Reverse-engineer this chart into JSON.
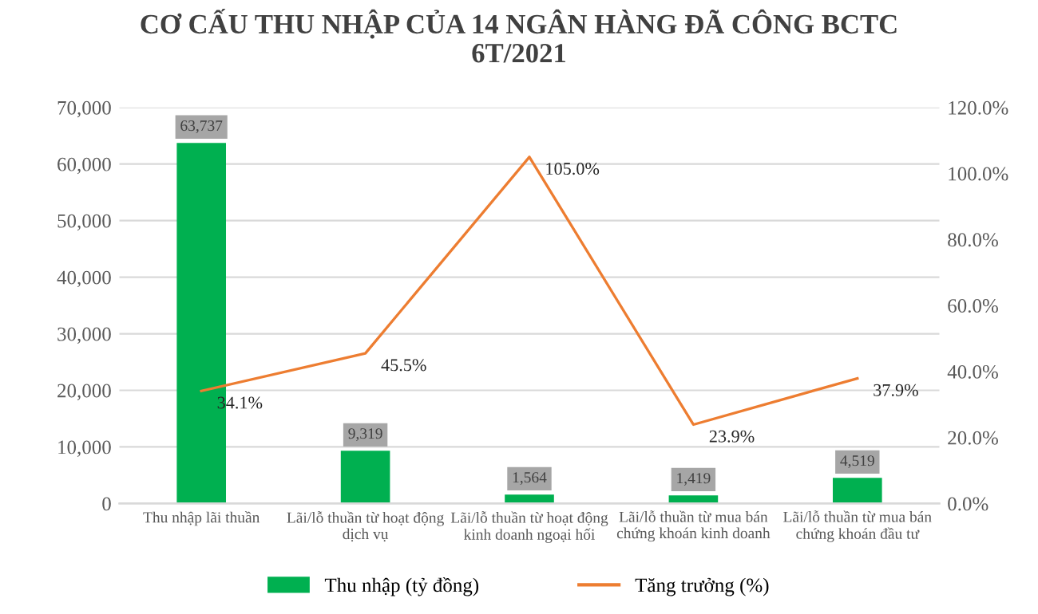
{
  "chart_data": {
    "type": "bar",
    "title": "CƠ CẤU THU NHẬP CỦA 14 NGÂN HÀNG ĐÃ CÔNG BCTC\n6T/2021",
    "categories": [
      "Thu nhập lãi thuần",
      "Lãi/lỗ thuần từ hoạt động\ndịch vụ",
      "Lãi/lỗ thuần từ hoạt động\nkinh doanh ngoại hối",
      "Lãi/lỗ thuần từ mua bán\nchứng khoán kinh doanh",
      "Lãi/lỗ thuần từ mua bán\nchứng khoán đầu tư"
    ],
    "series": [
      {
        "name": "Thu nhập (tỷ đồng)",
        "color": "#00b050",
        "values": [
          63737,
          9319,
          1564,
          1419,
          4519
        ],
        "value_labels": [
          "63,737",
          "9,319",
          "1,564",
          "1,419",
          "4,519"
        ]
      },
      {
        "name": "Tăng trưởng (%)",
        "type": "line",
        "axis": "y2",
        "color": "#ed7d31",
        "values": [
          34.1,
          45.5,
          105.0,
          23.9,
          37.9
        ],
        "value_labels": [
          "34.1%",
          "45.5%",
          "105.0%",
          "23.9%",
          "37.9%"
        ]
      }
    ],
    "ylim": [
      0,
      70000
    ],
    "yticks": [
      0,
      {
        "value": 10000,
        "label": "10,000"
      },
      {
        "value": 20000,
        "label": "20,000"
      },
      {
        "value": 30000,
        "label": "30,000"
      },
      {
        "value": 40000,
        "label": "40,000"
      },
      {
        "value": 50000,
        "label": "50,000"
      },
      {
        "value": 60000,
        "label": "60,000"
      },
      {
        "value": 70000,
        "label": "70,000"
      }
    ],
    "y2lim": [
      0,
      120
    ],
    "y2ticks": [
      {
        "value": 0,
        "label": "0.0%"
      },
      {
        "value": 20,
        "label": "20.0%"
      },
      {
        "value": 40,
        "label": "40.0%"
      },
      {
        "value": 60,
        "label": "60.0%"
      },
      {
        "value": 80,
        "label": "80.0%"
      },
      {
        "value": 100,
        "label": "100.0%"
      },
      {
        "value": 120,
        "label": "120.0%"
      }
    ],
    "grid": "y",
    "legend": "bottom",
    "marker": "none",
    "line_style": "solid"
  }
}
